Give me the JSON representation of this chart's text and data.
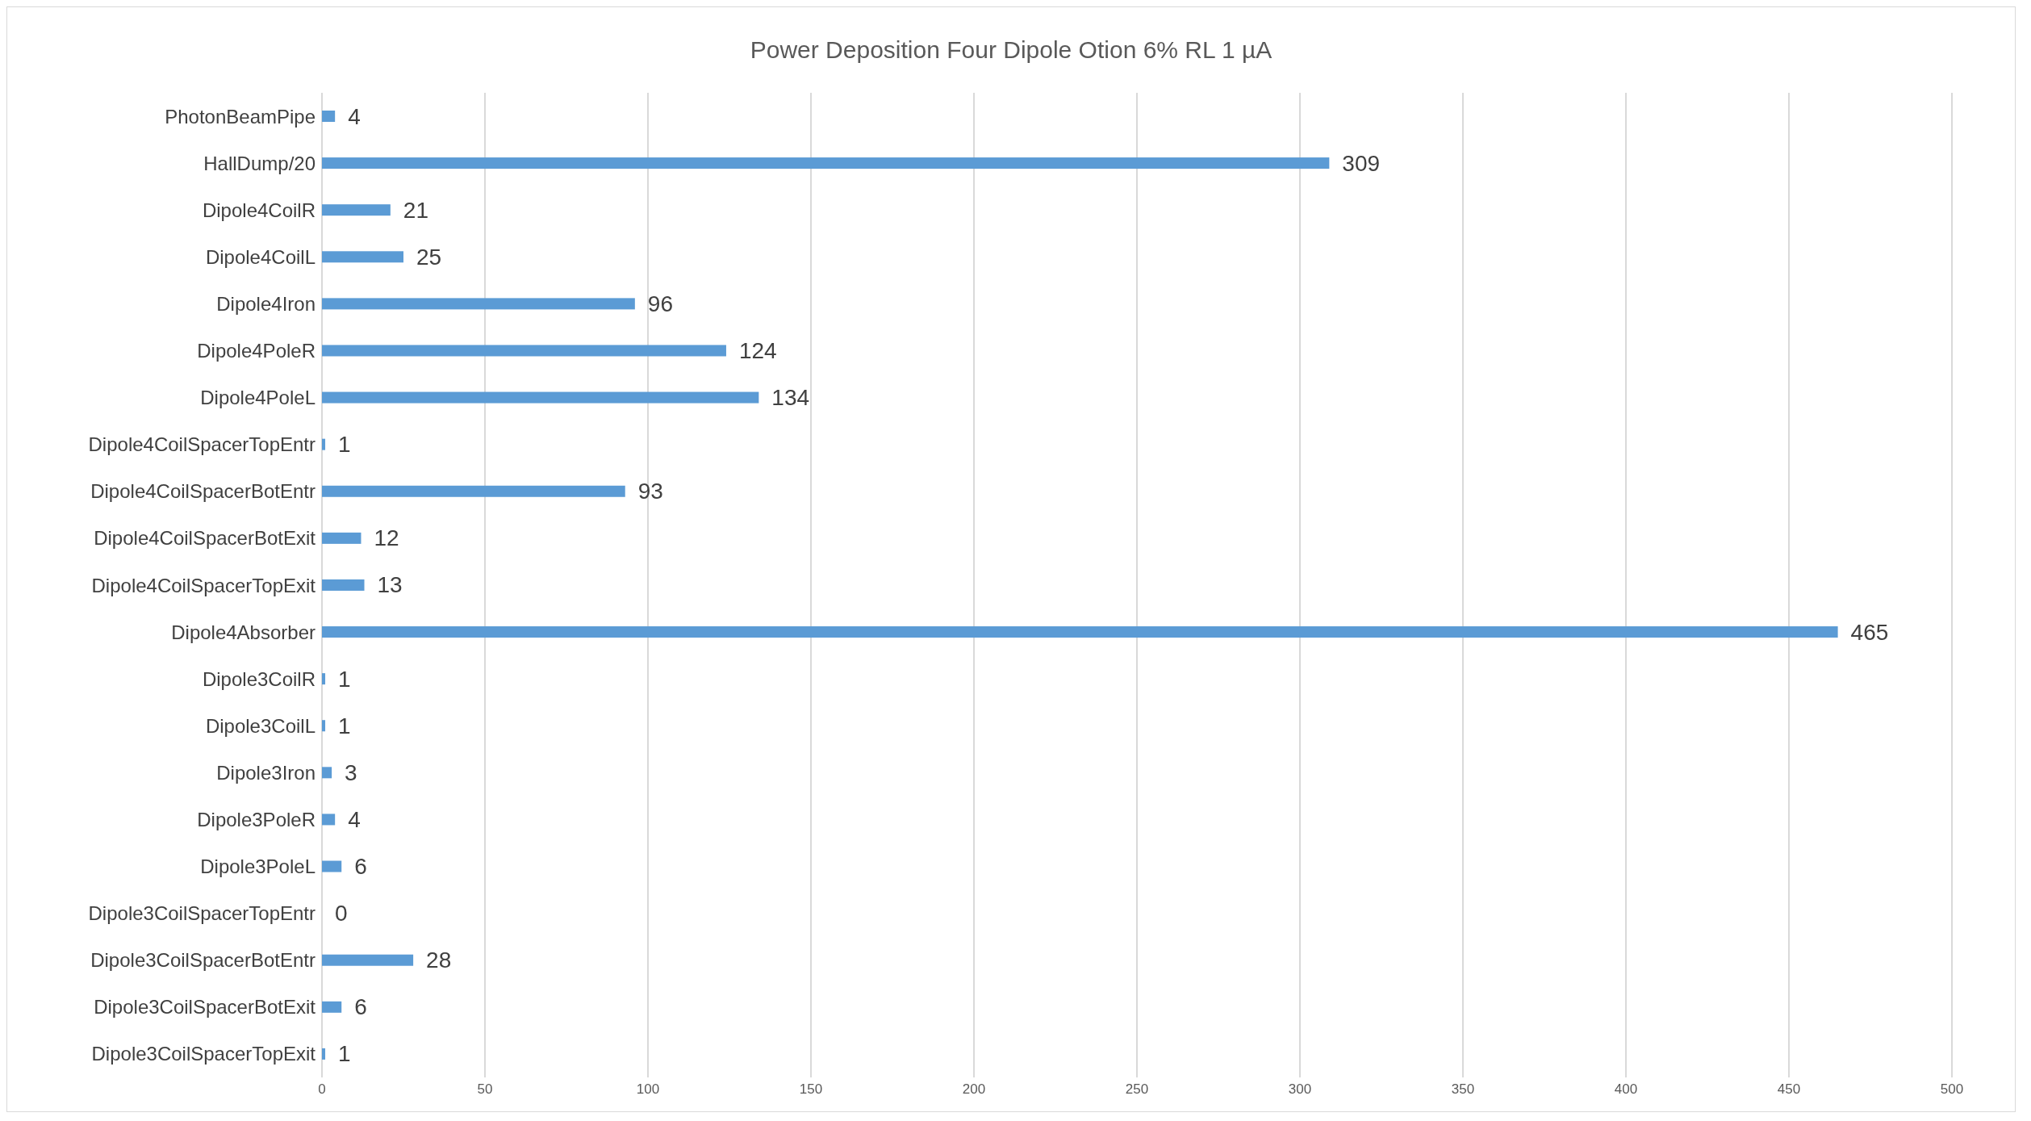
{
  "chart_data": {
    "type": "bar",
    "orientation": "horizontal",
    "title": "Power Deposition Four Dipole Otion 6% RL 1 µA",
    "categories": [
      "PhotonBeamPipe",
      "HallDump/20",
      "Dipole4CoilR",
      "Dipole4CoilL",
      "Dipole4Iron",
      "Dipole4PoleR",
      "Dipole4PoleL",
      "Dipole4CoilSpacerTopEntr",
      "Dipole4CoilSpacerBotEntr",
      "Dipole4CoilSpacerBotExit",
      "Dipole4CoilSpacerTopExit",
      "Dipole4Absorber",
      "Dipole3CoilR",
      "Dipole3CoilL",
      "Dipole3Iron",
      "Dipole3PoleR",
      "Dipole3PoleL",
      "Dipole3CoilSpacerTopEntr",
      "Dipole3CoilSpacerBotEntr",
      "Dipole3CoilSpacerBotExit",
      "Dipole3CoilSpacerTopExit"
    ],
    "values": [
      4,
      309,
      21,
      25,
      96,
      124,
      134,
      1,
      93,
      12,
      13,
      465,
      1,
      1,
      3,
      4,
      6,
      0,
      28,
      6,
      1
    ],
    "color": "#5b9bd5",
    "xlim": [
      0,
      500
    ],
    "xticks": [
      0,
      50,
      100,
      150,
      200,
      250,
      300,
      350,
      400,
      450,
      500
    ],
    "grid": "x",
    "data_labels": true
  }
}
